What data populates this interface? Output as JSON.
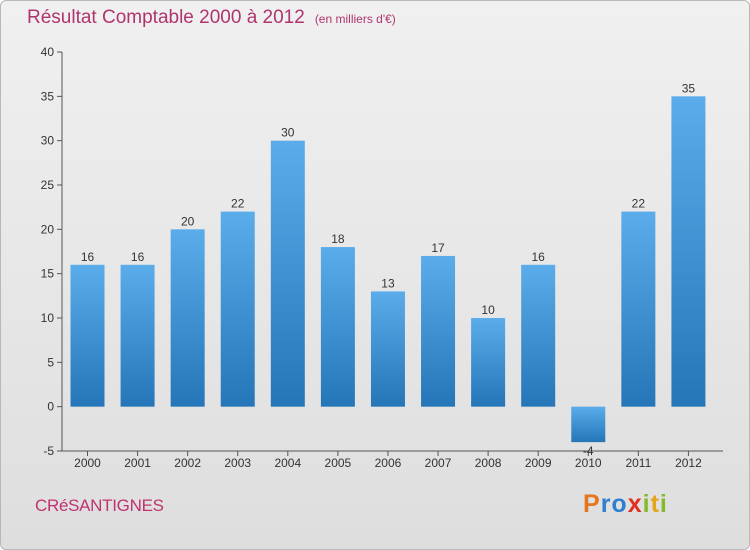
{
  "header": {
    "title": "Résultat Comptable 2000 à 2012",
    "unit": "(en milliers d'€)"
  },
  "footer": {
    "commune": "CRéSANTIGNES",
    "logo_text": "Proxiti"
  },
  "colors": {
    "title": "#b0346e",
    "bar_top": "#5aacea",
    "bar_bottom": "#2576b8",
    "logo_letters": [
      "#e3761e",
      "#2f7fcf",
      "#2f7fcf",
      "#e0301e",
      "#86b92a",
      "#e3a617",
      "#86b92a"
    ]
  },
  "chart_data": {
    "type": "bar",
    "title": "Résultat Comptable 2000 à 2012",
    "subtitle": "(en milliers d'€)",
    "xlabel": "",
    "ylabel": "",
    "categories": [
      "2000",
      "2001",
      "2002",
      "2003",
      "2004",
      "2005",
      "2006",
      "2007",
      "2008",
      "2009",
      "2010",
      "2011",
      "2012"
    ],
    "values": [
      16,
      16,
      20,
      22,
      30,
      18,
      13,
      17,
      10,
      16,
      -4,
      22,
      35
    ],
    "data_labels": [
      "16",
      "16",
      "20",
      "22",
      "30",
      "18",
      "13",
      "17",
      "10",
      "16",
      "-4",
      "22",
      "35"
    ],
    "ylim": [
      -5,
      40
    ],
    "yticks": [
      -5,
      0,
      5,
      10,
      15,
      20,
      25,
      30,
      35,
      40
    ],
    "grid": false,
    "legend": "none"
  }
}
